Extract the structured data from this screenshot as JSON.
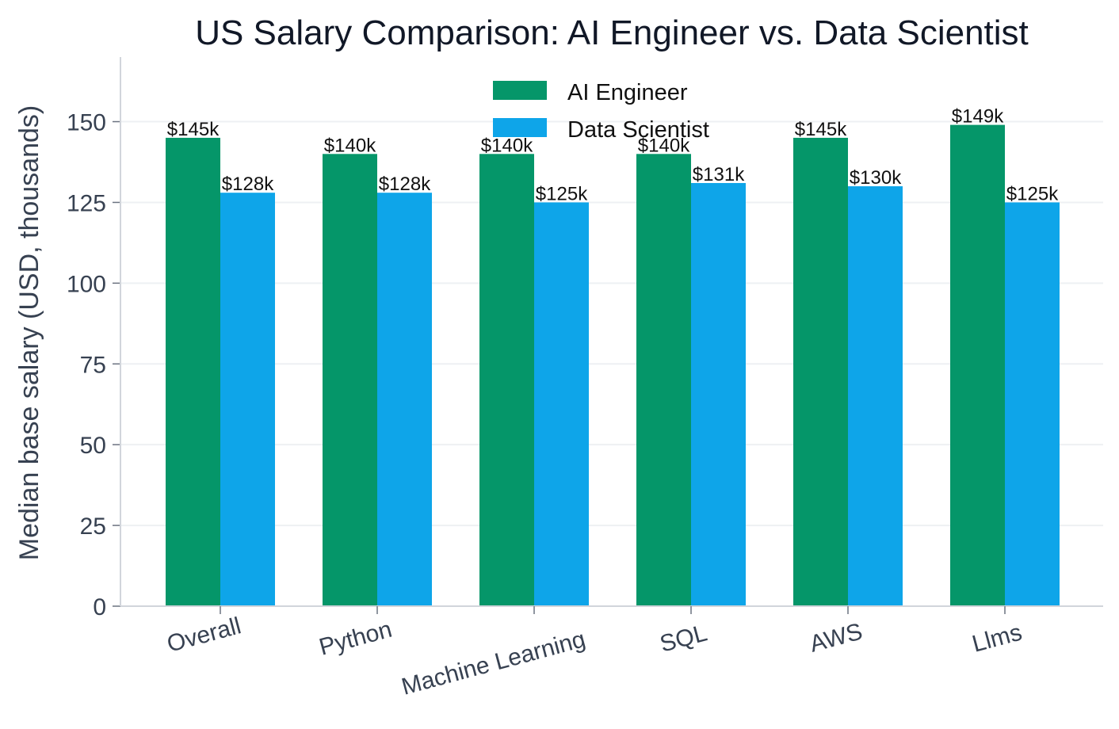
{
  "chart_data": {
    "type": "bar",
    "title": "US Salary Comparison: AI Engineer vs. Data Scientist",
    "ylabel": "Median base salary (USD, thousands)",
    "xlabel": "",
    "categories": [
      "Overall",
      "Python",
      "Machine Learning",
      "SQL",
      "AWS",
      "Llms"
    ],
    "series": [
      {
        "name": "AI Engineer",
        "color": "#059669",
        "values": [
          145,
          140,
          140,
          140,
          145,
          149
        ],
        "labels": [
          "$145k",
          "$140k",
          "$140k",
          "$140k",
          "$145k",
          "$149k"
        ]
      },
      {
        "name": "Data Scientist",
        "color": "#0EA5E9",
        "values": [
          128,
          128,
          125,
          131,
          130,
          125
        ],
        "labels": [
          "$128k",
          "$128k",
          "$125k",
          "$131k",
          "$130k",
          "$125k"
        ]
      }
    ],
    "ylim": [
      0,
      170
    ],
    "yticks": [
      0,
      25,
      50,
      75,
      100,
      125,
      150
    ],
    "ytick_labels": [
      "0",
      "25",
      "50",
      "75",
      "100",
      "125",
      "150"
    ],
    "grid": true,
    "legend_position": "top-center"
  }
}
